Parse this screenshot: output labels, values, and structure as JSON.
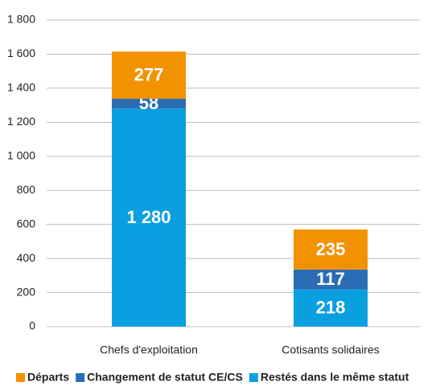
{
  "chart_data": {
    "type": "stacked_bar",
    "categories": [
      "Chefs d'exploitation",
      "Cotisants solidaires"
    ],
    "series": [
      {
        "name": "Départs",
        "color": "#f39200",
        "values": [
          277,
          235
        ]
      },
      {
        "name": "Changement de statut CE/CS",
        "color": "#2a6db5",
        "values": [
          58,
          117
        ]
      },
      {
        "name": "Restés dans le même statut",
        "color": "#0aa0e0",
        "values": [
          1280,
          218
        ],
        "value_labels": [
          "1 280",
          "218"
        ]
      }
    ],
    "ylim": [
      0,
      1800
    ],
    "yticks": [
      0,
      200,
      400,
      600,
      800,
      {
        "value": 1000,
        "label": "1 000"
      },
      {
        "value": 1200,
        "label": "1 200"
      },
      {
        "value": 1400,
        "label": "1 400"
      },
      {
        "value": 1600,
        "label": "1 600"
      },
      {
        "value": 1800,
        "label": "1 800"
      }
    ],
    "grid": true,
    "legend": "bottom"
  }
}
